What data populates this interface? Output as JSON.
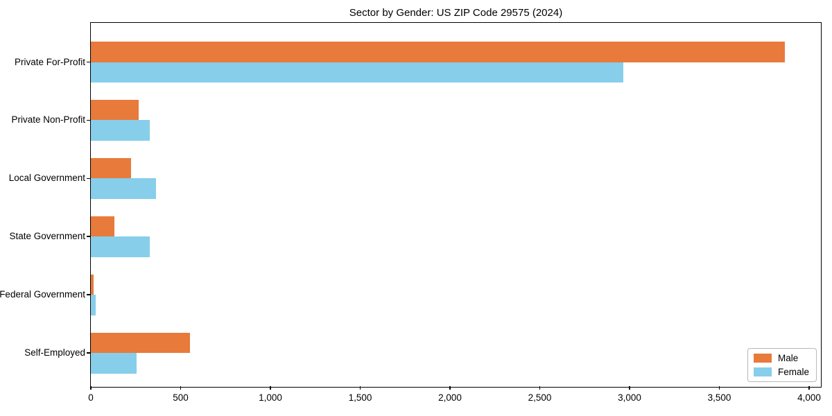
{
  "chart_data": {
    "type": "bar",
    "orientation": "horizontal",
    "title": "Sector by Gender: US ZIP Code 29575 (2024)",
    "categories": [
      "Private For-Profit",
      "Private Non-Profit",
      "Local Government",
      "State Government",
      "Federal Government",
      "Self-Employed"
    ],
    "series": [
      {
        "name": "Male",
        "color": "#E87A3C",
        "values": [
          3865,
          268,
          225,
          133,
          17,
          552
        ]
      },
      {
        "name": "Female",
        "color": "#87CEEB",
        "values": [
          2965,
          330,
          362,
          327,
          28,
          256
        ]
      }
    ],
    "xlabel": "",
    "ylabel": "",
    "xlim": [
      0,
      4058
    ],
    "xticks": [
      0,
      500,
      1000,
      1500,
      2000,
      2500,
      3000,
      3500,
      4000
    ],
    "xtick_labels": [
      "0",
      "500",
      "1,000",
      "1,500",
      "2,000",
      "2,500",
      "3,000",
      "3,500",
      "4,000"
    ],
    "grid": false,
    "legend_position": "lower right",
    "bar_layout": "male on top, female below, per category, no gap within group"
  }
}
